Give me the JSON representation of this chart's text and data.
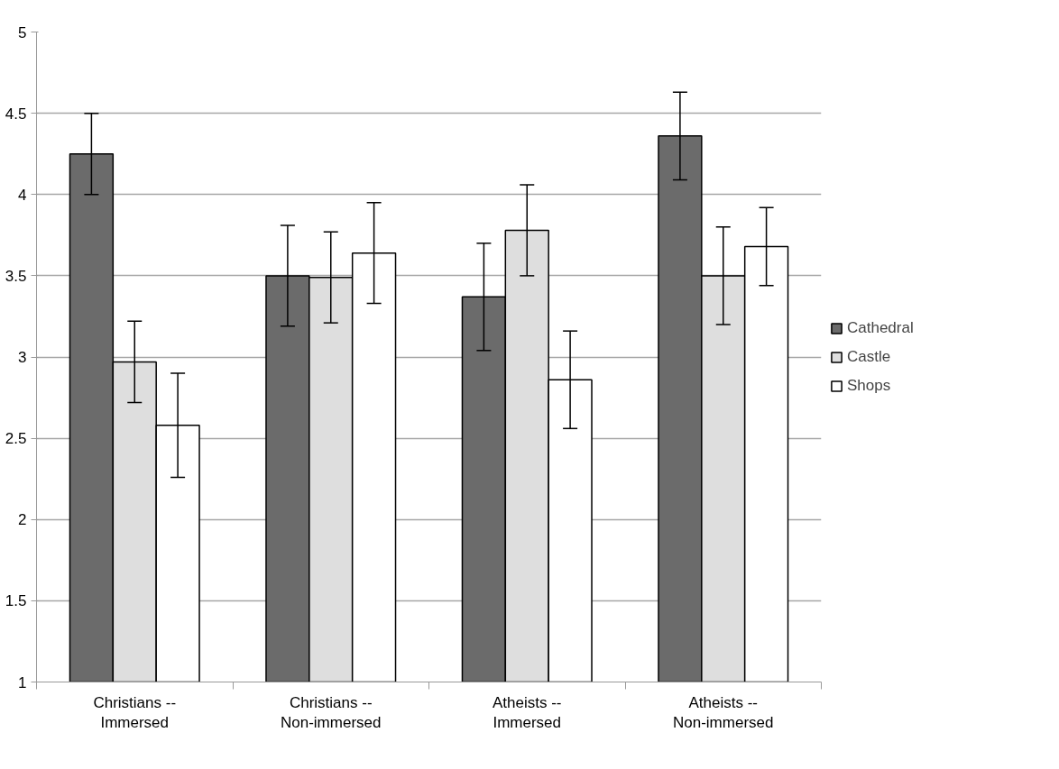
{
  "chart_data": {
    "type": "bar",
    "categories": [
      "Christians --\nImmersed",
      "Christians --\nNon-immersed",
      "Atheists --\nImmersed",
      "Atheists --\nNon-immersed"
    ],
    "series": [
      {
        "name": "Cathedral",
        "color": "#6b6b6b",
        "values": [
          4.25,
          3.5,
          3.37,
          4.36
        ],
        "errors": [
          0.25,
          0.31,
          0.33,
          0.27
        ]
      },
      {
        "name": "Castle",
        "color": "#dedede",
        "values": [
          2.97,
          3.49,
          3.78,
          3.5
        ],
        "errors": [
          0.25,
          0.28,
          0.28,
          0.3
        ]
      },
      {
        "name": "Shops",
        "color": "#ffffff",
        "values": [
          2.58,
          3.64,
          2.86,
          3.68
        ],
        "errors": [
          0.32,
          0.31,
          0.3,
          0.24
        ]
      }
    ],
    "ylim": [
      1,
      5
    ],
    "yticks": [
      1,
      1.5,
      2,
      2.5,
      3,
      3.5,
      4,
      4.5,
      5
    ],
    "grid": "y",
    "legend": "right"
  }
}
